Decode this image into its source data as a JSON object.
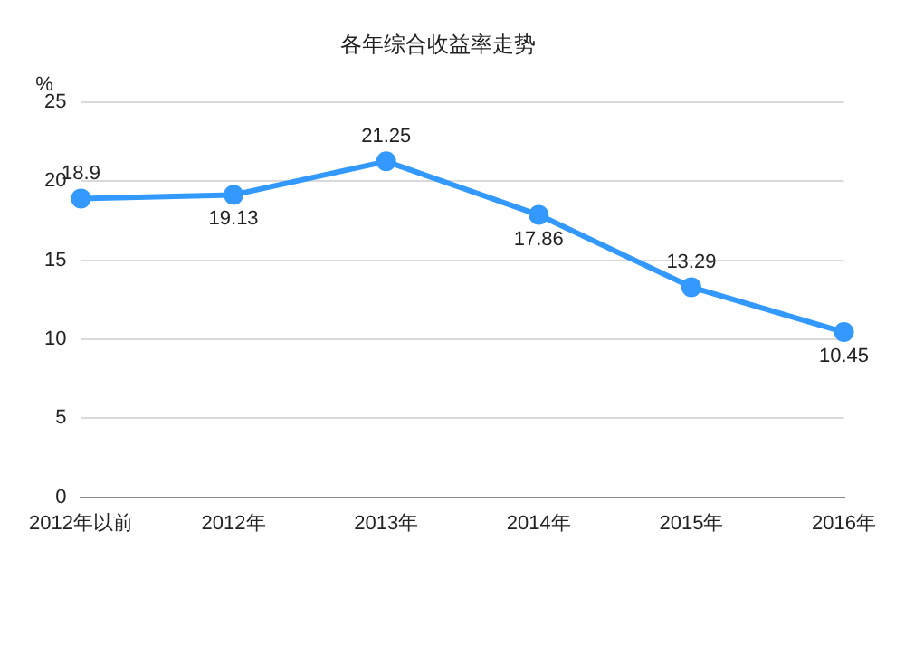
{
  "chart_data": {
    "type": "line",
    "title": "各年综合收益率走势",
    "ylabel": "%",
    "categories": [
      "2012年以前",
      "2012年",
      "2013年",
      "2014年",
      "2015年",
      "2016年"
    ],
    "series": [
      {
        "color": "#3399ff",
        "values": [
          18.9,
          19.13,
          21.25,
          17.86,
          13.29,
          10.45
        ]
      }
    ],
    "ylim": [
      0,
      25
    ],
    "yticks": [
      0,
      5,
      10,
      15,
      20,
      25
    ],
    "grid": "y",
    "marker": "circle",
    "line_style": "solid",
    "data_labels": true,
    "legend": false
  }
}
